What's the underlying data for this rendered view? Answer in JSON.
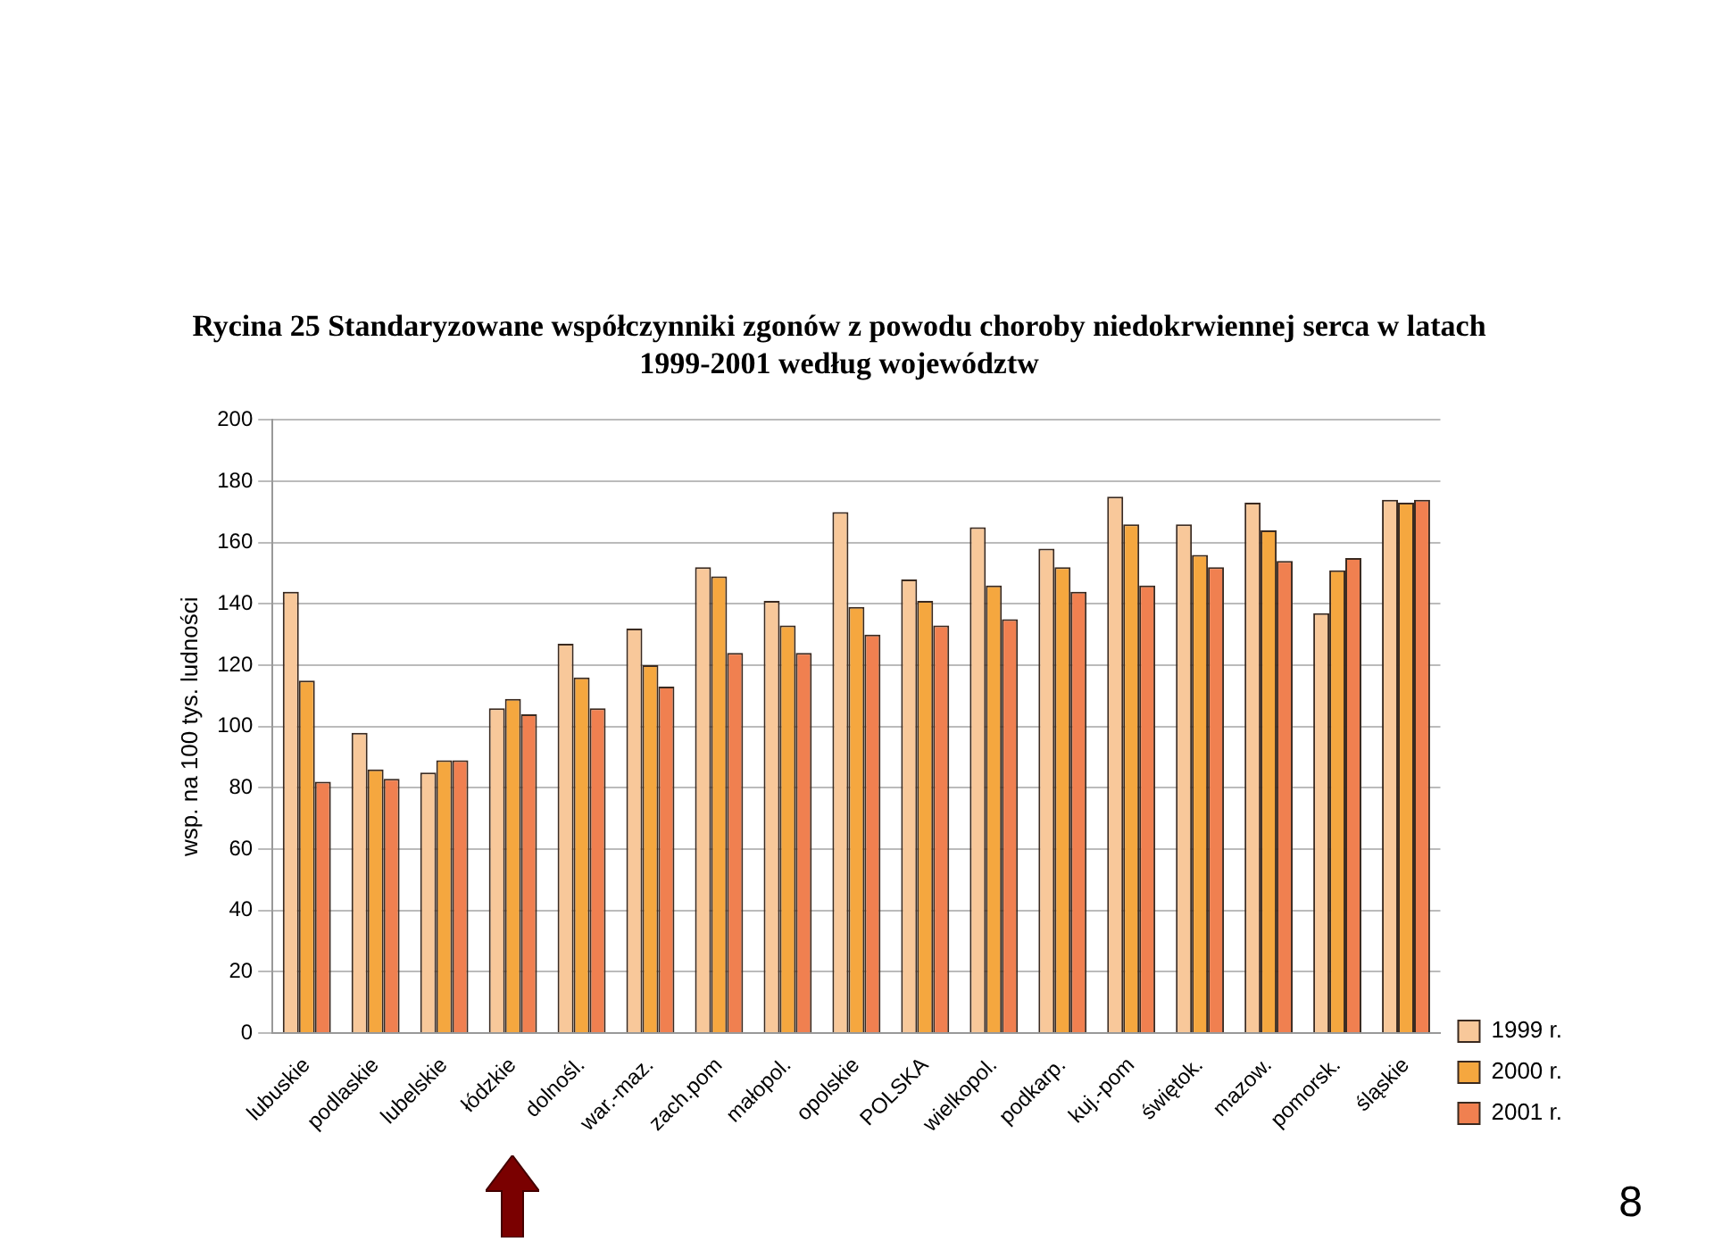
{
  "chart_data": {
    "type": "bar",
    "title": "Rycina 25 Standaryzowane współczynniki zgonów z powodu choroby niedokrwiennej serca w latach 1999-2001 według województw",
    "ylabel": "wsp. na 100 tys. ludności",
    "categories": [
      "lubuskie",
      "podlaskie",
      "lubelskie",
      "łódzkie",
      "dolnośl.",
      "war.-maz.",
      "zach.pom",
      "małopol.",
      "opolskie",
      "POLSKA",
      "wielkopol.",
      "podkarp.",
      "kuj.-pom",
      "świętok.",
      "mazow.",
      "pomorsk.",
      "śląskie"
    ],
    "series": [
      {
        "name": "1999 r.",
        "color": "#f8c89a",
        "values": [
          144,
          98,
          85,
          106,
          127,
          132,
          152,
          141,
          170,
          148,
          165,
          158,
          175,
          166,
          173,
          137,
          174
        ]
      },
      {
        "name": "2000 r.",
        "color": "#f5a73f",
        "values": [
          115,
          86,
          89,
          109,
          116,
          120,
          149,
          133,
          139,
          141,
          146,
          152,
          166,
          156,
          164,
          151,
          173
        ]
      },
      {
        "name": "2001 r.",
        "color": "#f08050",
        "values": [
          82,
          83,
          89,
          104,
          106,
          113,
          124,
          124,
          130,
          133,
          135,
          144,
          146,
          152,
          154,
          155,
          174
        ]
      }
    ],
    "ylim": [
      0,
      200
    ],
    "yticks": [
      0,
      20,
      40,
      60,
      80,
      100,
      120,
      140,
      160,
      180,
      200
    ],
    "grid": "y",
    "legend": "right",
    "annotations": [
      "8"
    ]
  }
}
